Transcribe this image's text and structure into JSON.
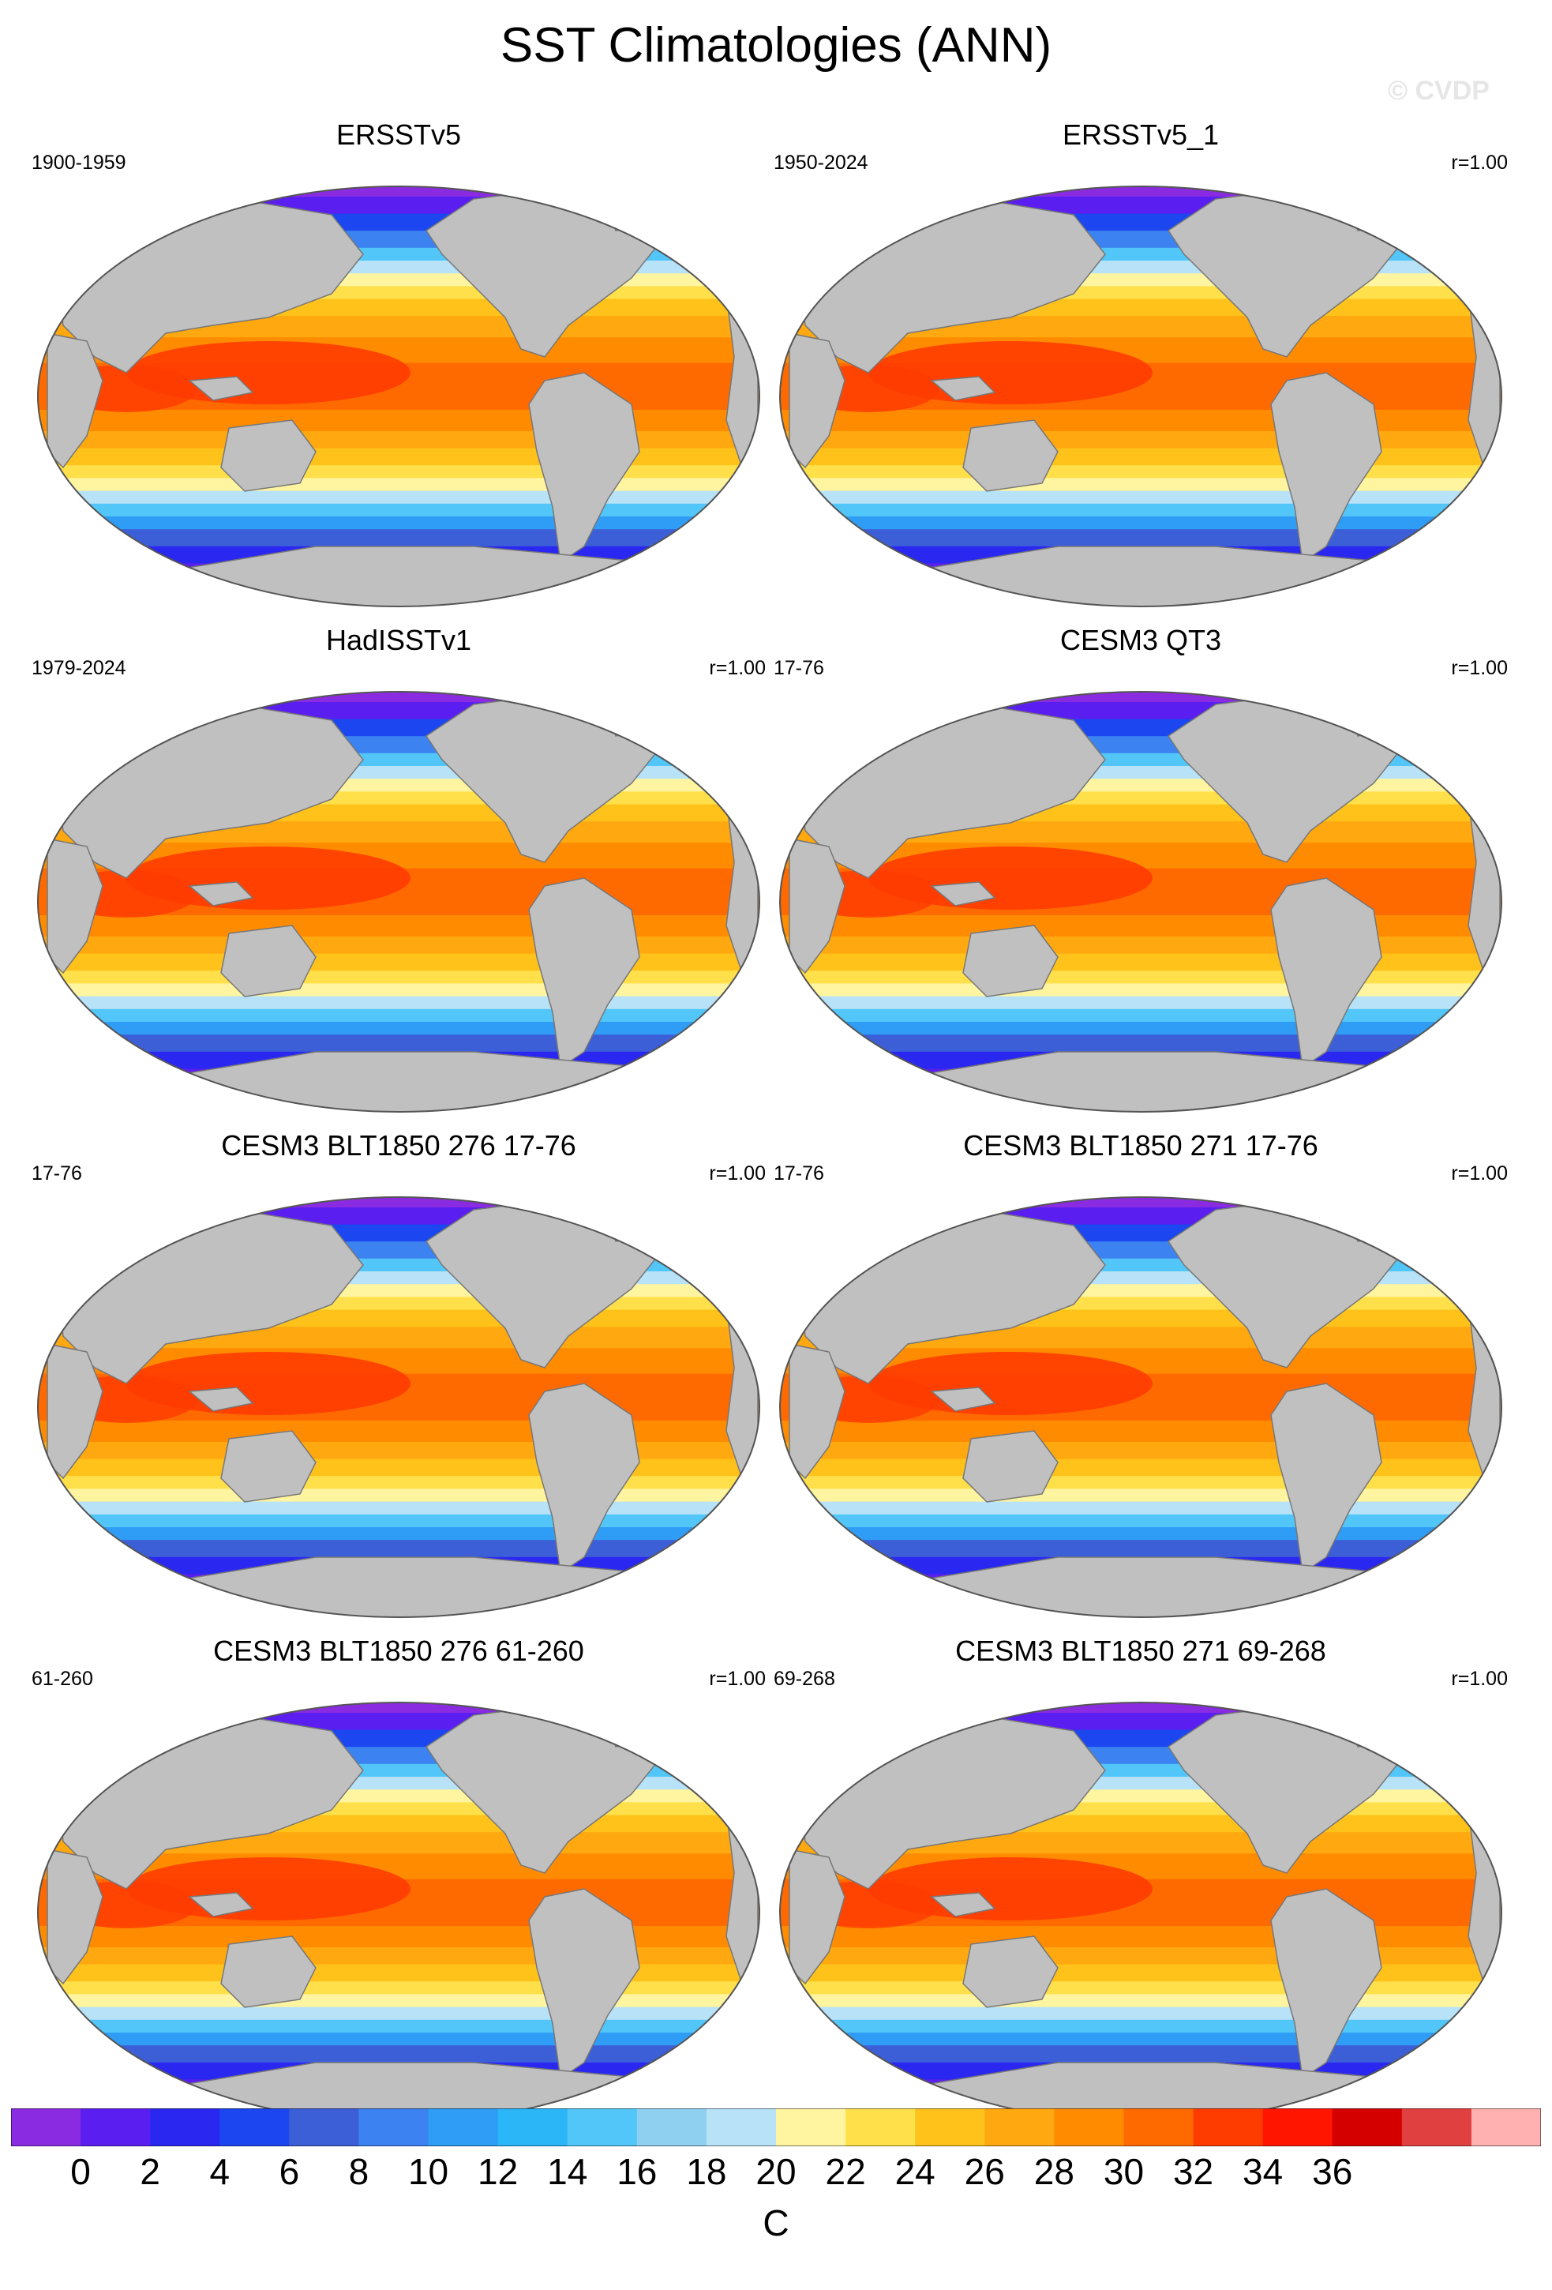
{
  "title": "SST Climatologies (ANN)",
  "watermark": "© CVDP",
  "colors": {
    "land": "#c0c0c0",
    "ocean_outline": "#555555",
    "palette": [
      "#8a2be2",
      "#5a1ef0",
      "#2a28f0",
      "#1b46f0",
      "#3c5fd8",
      "#3c82f0",
      "#2f9cf5",
      "#2bb6f7",
      "#52c6f8",
      "#8fd0f0",
      "#b8e2f7",
      "#fff5a0",
      "#ffe04a",
      "#ffc21a",
      "#ffa80f",
      "#ff8c00",
      "#ff6a00",
      "#ff3c00",
      "#ff1500",
      "#d40000",
      "#e04040",
      "#ffb0b0"
    ]
  },
  "panels": [
    {
      "title": "ERSSTv5",
      "years": "1900-1959",
      "corr": ""
    },
    {
      "title": "ERSSTv5_1",
      "years": "1950-2024",
      "corr": "r=1.00"
    },
    {
      "title": "HadISSTv1",
      "years": "1979-2024",
      "corr": "r=1.00"
    },
    {
      "title": "CESM3 QT3",
      "years": "17-76",
      "corr": "r=1.00"
    },
    {
      "title": "CESM3 BLT1850 276 17-76",
      "years": "17-76",
      "corr": "r=1.00"
    },
    {
      "title": "CESM3 BLT1850 271 17-76",
      "years": "17-76",
      "corr": "r=1.00"
    },
    {
      "title": "CESM3 BLT1850 276 61-260",
      "years": "61-260",
      "corr": "r=1.00"
    },
    {
      "title": "CESM3 BLT1850 271 69-268",
      "years": "69-268",
      "corr": "r=1.00"
    }
  ],
  "colorbar": {
    "labels": [
      "0",
      "2",
      "4",
      "6",
      "8",
      "10",
      "12",
      "14",
      "16",
      "18",
      "20",
      "22",
      "24",
      "26",
      "28",
      "30",
      "32",
      "34",
      "36"
    ],
    "units": "C"
  }
}
